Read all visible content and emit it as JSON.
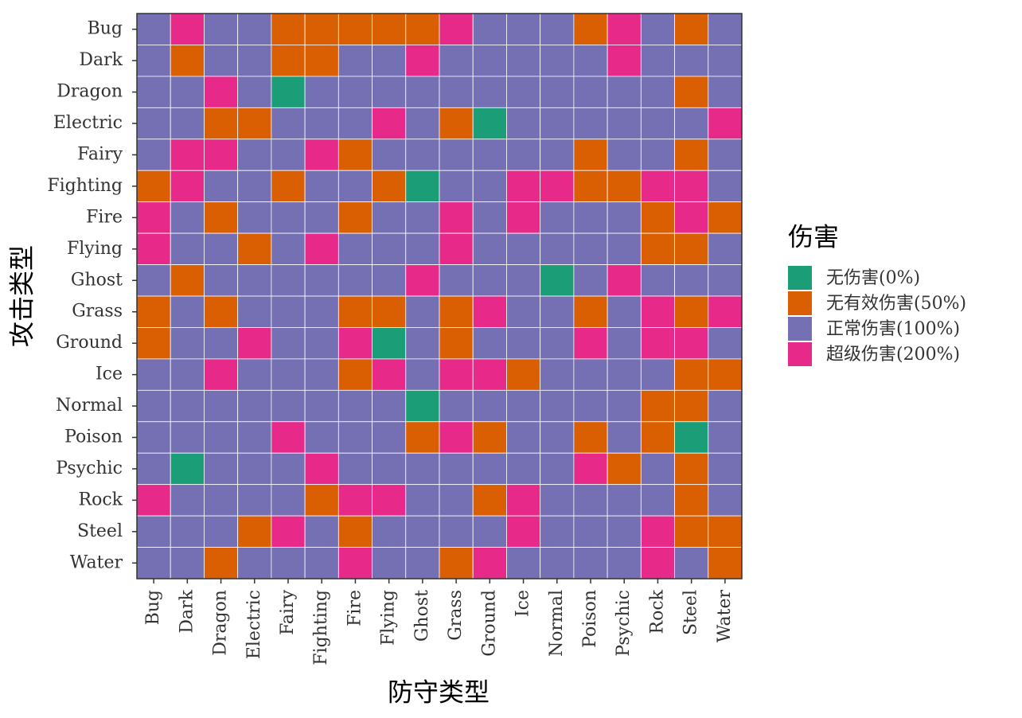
{
  "chart_data": {
    "type": "heatmap",
    "x_label": "防守类型",
    "y_label": "攻击类型",
    "legend_title": "伤害",
    "x": [
      "Bug",
      "Dark",
      "Dragon",
      "Electric",
      "Fairy",
      "Fighting",
      "Fire",
      "Flying",
      "Ghost",
      "Grass",
      "Ground",
      "Ice",
      "Normal",
      "Poison",
      "Psychic",
      "Rock",
      "Steel",
      "Water"
    ],
    "y": [
      "Bug",
      "Dark",
      "Dragon",
      "Electric",
      "Fairy",
      "Fighting",
      "Fire",
      "Flying",
      "Ghost",
      "Grass",
      "Ground",
      "Ice",
      "Normal",
      "Poison",
      "Psychic",
      "Rock",
      "Steel",
      "Water"
    ],
    "legend": [
      {
        "label": "无伤害(0%)",
        "value": 0,
        "color": "#1b9e77"
      },
      {
        "label": "无有效伤害(50%)",
        "value": 50,
        "color": "#d95f02"
      },
      {
        "label": "正常伤害(100%)",
        "value": 100,
        "color": "#7570b3"
      },
      {
        "label": "超级伤害(200%)",
        "value": 200,
        "color": "#e7298a"
      }
    ],
    "values": [
      [
        100,
        200,
        100,
        100,
        50,
        50,
        50,
        50,
        50,
        200,
        100,
        100,
        100,
        50,
        200,
        100,
        50,
        100
      ],
      [
        100,
        50,
        100,
        100,
        50,
        50,
        100,
        100,
        200,
        100,
        100,
        100,
        100,
        100,
        200,
        100,
        100,
        100
      ],
      [
        100,
        100,
        200,
        100,
        0,
        100,
        100,
        100,
        100,
        100,
        100,
        100,
        100,
        100,
        100,
        100,
        50,
        100
      ],
      [
        100,
        100,
        50,
        50,
        100,
        100,
        100,
        200,
        100,
        50,
        0,
        100,
        100,
        100,
        100,
        100,
        100,
        200
      ],
      [
        100,
        200,
        200,
        100,
        100,
        200,
        50,
        100,
        100,
        100,
        100,
        100,
        100,
        50,
        100,
        100,
        50,
        100
      ],
      [
        50,
        200,
        100,
        100,
        50,
        100,
        100,
        50,
        0,
        100,
        100,
        200,
        200,
        50,
        50,
        200,
        200,
        100
      ],
      [
        200,
        100,
        50,
        100,
        100,
        100,
        50,
        100,
        100,
        200,
        100,
        200,
        100,
        100,
        100,
        50,
        200,
        50
      ],
      [
        200,
        100,
        100,
        50,
        100,
        200,
        100,
        100,
        100,
        200,
        100,
        100,
        100,
        100,
        100,
        50,
        50,
        100
      ],
      [
        100,
        50,
        100,
        100,
        100,
        100,
        100,
        100,
        200,
        100,
        100,
        100,
        0,
        100,
        200,
        100,
        100,
        100
      ],
      [
        50,
        100,
        50,
        100,
        100,
        100,
        50,
        50,
        100,
        50,
        200,
        100,
        100,
        50,
        100,
        200,
        50,
        200
      ],
      [
        50,
        100,
        100,
        200,
        100,
        100,
        200,
        0,
        100,
        50,
        100,
        100,
        100,
        200,
        100,
        200,
        200,
        100
      ],
      [
        100,
        100,
        200,
        100,
        100,
        100,
        50,
        200,
        100,
        200,
        200,
        50,
        100,
        100,
        100,
        100,
        50,
        50
      ],
      [
        100,
        100,
        100,
        100,
        100,
        100,
        100,
        100,
        0,
        100,
        100,
        100,
        100,
        100,
        100,
        50,
        50,
        100
      ],
      [
        100,
        100,
        100,
        100,
        200,
        100,
        100,
        100,
        50,
        200,
        50,
        100,
        100,
        50,
        100,
        50,
        0,
        100
      ],
      [
        100,
        0,
        100,
        100,
        100,
        200,
        100,
        100,
        100,
        100,
        100,
        100,
        100,
        200,
        50,
        100,
        50,
        100
      ],
      [
        200,
        100,
        100,
        100,
        100,
        50,
        200,
        200,
        100,
        100,
        50,
        200,
        100,
        100,
        100,
        100,
        50,
        100
      ],
      [
        100,
        100,
        100,
        50,
        200,
        100,
        50,
        100,
        100,
        100,
        100,
        200,
        100,
        100,
        100,
        200,
        50,
        50
      ],
      [
        100,
        100,
        50,
        100,
        100,
        100,
        200,
        100,
        100,
        50,
        200,
        100,
        100,
        100,
        100,
        200,
        100,
        50
      ]
    ]
  }
}
